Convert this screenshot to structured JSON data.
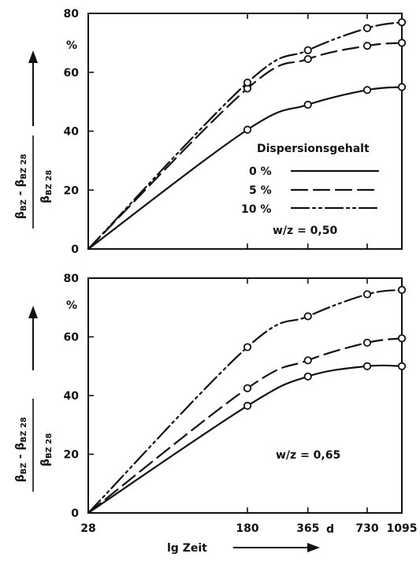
{
  "chart_data": [
    {
      "type": "line",
      "ylabel_numerator_a": "β",
      "ylabel_numerator_a_sub": "BZ",
      "ylabel_numerator_sep": " - ",
      "ylabel_numerator_b": "β",
      "ylabel_numerator_b_sub": "BZ 28",
      "ylabel_denominator": "β",
      "ylabel_denominator_sub": "BZ 28",
      "yunit": "%",
      "ylim": [
        0,
        80
      ],
      "yticks": [
        0,
        20,
        40,
        60,
        80
      ],
      "xlim": [
        28,
        1095
      ],
      "xscale": "log",
      "legend_title": "Dispersionsgehalt",
      "annotation": "w/z = 0,50",
      "series": [
        {
          "name": "0 %",
          "style": "solid",
          "x": [
            28,
            180,
            365,
            730,
            1095
          ],
          "y": [
            0,
            40.5,
            49,
            54,
            55
          ]
        },
        {
          "name": "5 %",
          "style": "dashed",
          "x": [
            28,
            180,
            365,
            730,
            1095
          ],
          "y": [
            0,
            54.5,
            64.5,
            69,
            70
          ]
        },
        {
          "name": "10 %",
          "style": "dash-dot-dot",
          "x": [
            28,
            180,
            365,
            730,
            1095
          ],
          "y": [
            0,
            56.5,
            67.5,
            75,
            77
          ]
        }
      ]
    },
    {
      "type": "line",
      "ylabel_numerator_a": "β",
      "ylabel_numerator_a_sub": "BZ",
      "ylabel_numerator_sep": " - ",
      "ylabel_numerator_b": "β",
      "ylabel_numerator_b_sub": "BZ 28",
      "ylabel_denominator": "β",
      "ylabel_denominator_sub": "BZ 28",
      "yunit": "%",
      "ylim": [
        0,
        80
      ],
      "yticks": [
        0,
        20,
        40,
        60,
        80
      ],
      "xlim": [
        28,
        1095
      ],
      "xscale": "log",
      "xticks": [
        "28",
        "180",
        "365",
        "730",
        "1095"
      ],
      "xunit": "d",
      "xlabel": "lg Zeit",
      "annotation": "w/z = 0,65",
      "series": [
        {
          "name": "0 %",
          "style": "solid",
          "x": [
            28,
            180,
            365,
            730,
            1095
          ],
          "y": [
            0,
            36.5,
            46.5,
            50,
            50
          ]
        },
        {
          "name": "5 %",
          "style": "dashed",
          "x": [
            28,
            180,
            365,
            730,
            1095
          ],
          "y": [
            0,
            42.5,
            52,
            58,
            59.5
          ]
        },
        {
          "name": "10 %",
          "style": "dash-dot-dot",
          "x": [
            28,
            180,
            365,
            730,
            1095
          ],
          "y": [
            0,
            56.5,
            67,
            74.5,
            76
          ]
        }
      ]
    }
  ]
}
